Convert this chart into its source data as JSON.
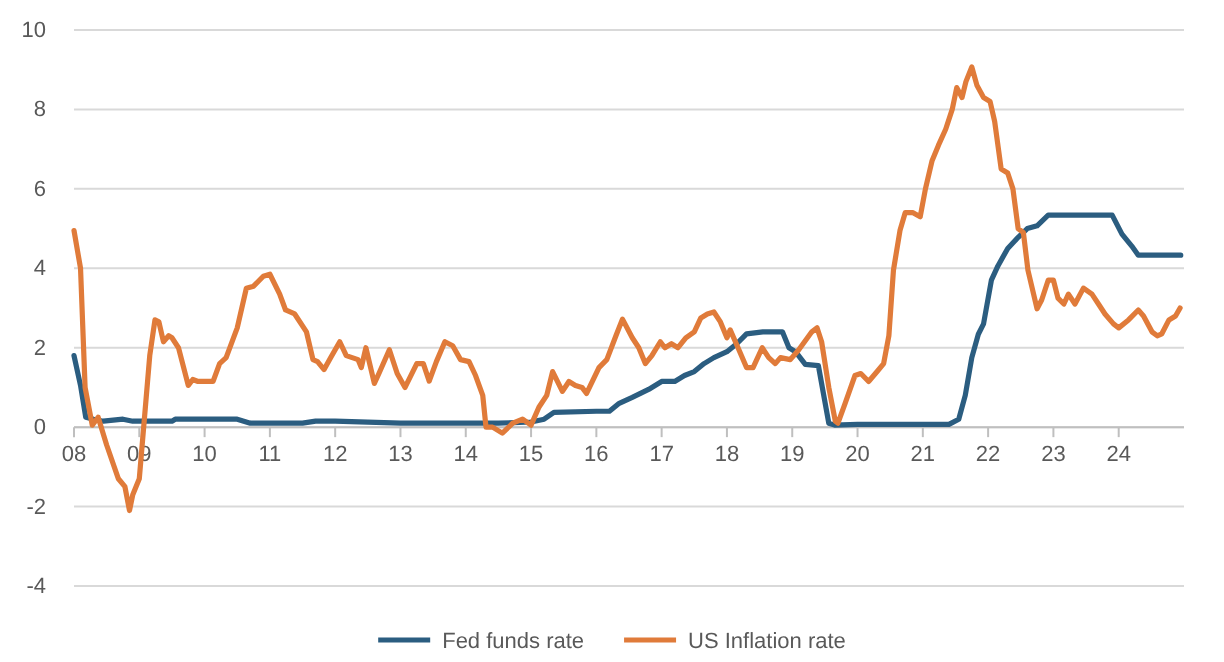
{
  "chart_data": {
    "type": "line",
    "xlim": [
      2008,
      2025
    ],
    "xticks": [
      {
        "value": 2008,
        "label": "08"
      },
      {
        "value": 2009,
        "label": "09"
      },
      {
        "value": 2010,
        "label": "10"
      },
      {
        "value": 2011,
        "label": "11"
      },
      {
        "value": 2012,
        "label": "12"
      },
      {
        "value": 2013,
        "label": "13"
      },
      {
        "value": 2014,
        "label": "14"
      },
      {
        "value": 2015,
        "label": "15"
      },
      {
        "value": 2016,
        "label": "16"
      },
      {
        "value": 2017,
        "label": "17"
      },
      {
        "value": 2018,
        "label": "18"
      },
      {
        "value": 2019,
        "label": "19"
      },
      {
        "value": 2020,
        "label": "20"
      },
      {
        "value": 2021,
        "label": "21"
      },
      {
        "value": 2022,
        "label": "22"
      },
      {
        "value": 2023,
        "label": "23"
      },
      {
        "value": 2024,
        "label": "24"
      }
    ],
    "ylim": [
      -4,
      10
    ],
    "yticks": [
      -4,
      -2,
      0,
      2,
      4,
      6,
      8,
      10
    ],
    "grid": "y",
    "legend": "bottom",
    "marker": "none",
    "line_style": "solid",
    "series": [
      {
        "name": "Fed funds rate",
        "color": "#2b5d80",
        "x": [
          2008.0,
          2008.1,
          2008.18,
          2008.3,
          2008.45,
          2008.75,
          2008.9,
          2009.5,
          2009.55,
          2010.0,
          2010.5,
          2010.7,
          2011.5,
          2011.7,
          2012.0,
          2013.0,
          2014.5,
          2015.0,
          2015.2,
          2015.35,
          2016.0,
          2016.2,
          2016.35,
          2016.55,
          2016.8,
          2017.0,
          2017.2,
          2017.35,
          2017.5,
          2017.65,
          2017.8,
          2018.0,
          2018.15,
          2018.3,
          2018.55,
          2018.85,
          2018.95,
          2019.05,
          2019.2,
          2019.4,
          2019.56,
          2019.65,
          2020.0,
          2021.4,
          2021.55,
          2021.65,
          2021.75,
          2021.85,
          2021.93,
          2022.05,
          2022.15,
          2022.3,
          2022.46,
          2022.6,
          2022.75,
          2022.92,
          2023.9,
          2024.05,
          2024.2,
          2024.3,
          2024.95
        ],
        "values": [
          1.8,
          1.05,
          0.25,
          0.2,
          0.15,
          0.2,
          0.15,
          0.15,
          0.2,
          0.2,
          0.2,
          0.1,
          0.1,
          0.15,
          0.15,
          0.1,
          0.1,
          0.13,
          0.2,
          0.37,
          0.4,
          0.4,
          0.6,
          0.75,
          0.95,
          1.15,
          1.15,
          1.3,
          1.4,
          1.6,
          1.75,
          1.9,
          2.1,
          2.35,
          2.4,
          2.4,
          2.0,
          1.9,
          1.58,
          1.55,
          0.1,
          0.05,
          0.07,
          0.07,
          0.2,
          0.8,
          1.75,
          2.34,
          2.6,
          3.7,
          4.06,
          4.5,
          4.78,
          5.0,
          5.07,
          5.34,
          5.34,
          4.86,
          4.56,
          4.33,
          4.33
        ]
      },
      {
        "name": "US Inflation rate",
        "color": "#e07b3a",
        "x": [
          2008.0,
          2008.1,
          2008.17,
          2008.28,
          2008.37,
          2008.5,
          2008.68,
          2008.78,
          2008.85,
          2008.9,
          2009.0,
          2009.16,
          2009.24,
          2009.3,
          2009.37,
          2009.45,
          2009.5,
          2009.6,
          2009.75,
          2009.82,
          2009.9,
          2010.13,
          2010.23,
          2010.33,
          2010.5,
          2010.64,
          2010.75,
          2010.9,
          2011.0,
          2011.15,
          2011.24,
          2011.38,
          2011.56,
          2011.66,
          2011.73,
          2011.83,
          2011.93,
          2012.07,
          2012.17,
          2012.35,
          2012.4,
          2012.47,
          2012.6,
          2012.67,
          2012.83,
          2012.95,
          2013.07,
          2013.25,
          2013.35,
          2013.44,
          2013.55,
          2013.68,
          2013.8,
          2013.92,
          2014.05,
          2014.15,
          2014.26,
          2014.31,
          2014.41,
          2014.56,
          2014.72,
          2014.87,
          2015.0,
          2015.12,
          2015.24,
          2015.33,
          2015.48,
          2015.58,
          2015.68,
          2015.78,
          2015.85,
          2016.04,
          2016.16,
          2016.3,
          2016.4,
          2016.55,
          2016.65,
          2016.75,
          2016.85,
          2016.98,
          2017.05,
          2017.15,
          2017.25,
          2017.37,
          2017.5,
          2017.6,
          2017.7,
          2017.8,
          2017.9,
          2018.0,
          2018.05,
          2018.17,
          2018.3,
          2018.4,
          2018.54,
          2018.64,
          2018.74,
          2018.82,
          2018.97,
          2019.1,
          2019.3,
          2019.38,
          2019.45,
          2019.56,
          2019.66,
          2019.7,
          2019.81,
          2019.96,
          2020.05,
          2020.17,
          2020.3,
          2020.4,
          2020.48,
          2020.55,
          2020.65,
          2020.73,
          2020.85,
          2020.96,
          2021.04,
          2021.14,
          2021.24,
          2021.35,
          2021.45,
          2021.52,
          2021.6,
          2021.66,
          2021.75,
          2021.83,
          2021.93,
          2022.03,
          2022.1,
          2022.2,
          2022.3,
          2022.38,
          2022.46,
          2022.54,
          2022.61,
          2022.75,
          2022.82,
          2022.92,
          2023.0,
          2023.07,
          2023.16,
          2023.23,
          2023.33,
          2023.46,
          2023.59,
          2023.69,
          2023.79,
          2023.92,
          2024.0,
          2024.15,
          2024.3,
          2024.38,
          2024.51,
          2024.59,
          2024.66,
          2024.77,
          2024.87,
          2024.94
        ],
        "values": [
          4.95,
          4.0,
          1.0,
          0.05,
          0.25,
          -0.45,
          -1.3,
          -1.5,
          -2.1,
          -1.7,
          -1.3,
          1.8,
          2.7,
          2.65,
          2.15,
          2.3,
          2.25,
          2.0,
          1.05,
          1.2,
          1.15,
          1.15,
          1.6,
          1.75,
          2.5,
          3.5,
          3.55,
          3.8,
          3.85,
          3.35,
          2.95,
          2.85,
          2.4,
          1.7,
          1.65,
          1.45,
          1.75,
          2.15,
          1.8,
          1.7,
          1.5,
          2.0,
          1.1,
          1.35,
          1.95,
          1.35,
          1.0,
          1.6,
          1.6,
          1.16,
          1.65,
          2.15,
          2.05,
          1.7,
          1.65,
          1.3,
          0.8,
          0.0,
          0.0,
          -0.15,
          0.1,
          0.2,
          0.05,
          0.5,
          0.8,
          1.4,
          0.9,
          1.15,
          1.05,
          1.0,
          0.85,
          1.5,
          1.7,
          2.3,
          2.72,
          2.25,
          2.0,
          1.6,
          1.8,
          2.15,
          2.0,
          2.1,
          2.0,
          2.25,
          2.4,
          2.75,
          2.85,
          2.9,
          2.65,
          2.25,
          2.45,
          2.0,
          1.5,
          1.5,
          2.0,
          1.75,
          1.6,
          1.75,
          1.7,
          1.95,
          2.4,
          2.5,
          2.15,
          1.0,
          0.15,
          0.1,
          0.6,
          1.3,
          1.35,
          1.15,
          1.4,
          1.6,
          2.3,
          3.95,
          4.95,
          5.4,
          5.4,
          5.3,
          6.0,
          6.7,
          7.1,
          7.5,
          8.0,
          8.55,
          8.3,
          8.7,
          9.07,
          8.6,
          8.3,
          8.2,
          7.7,
          6.5,
          6.4,
          6.0,
          5.0,
          4.9,
          3.95,
          2.98,
          3.2,
          3.7,
          3.7,
          3.25,
          3.1,
          3.35,
          3.1,
          3.5,
          3.35,
          3.1,
          2.85,
          2.6,
          2.5,
          2.7,
          2.95,
          2.8,
          2.4,
          2.3,
          2.35,
          2.7,
          2.8,
          3.0
        ]
      }
    ]
  }
}
